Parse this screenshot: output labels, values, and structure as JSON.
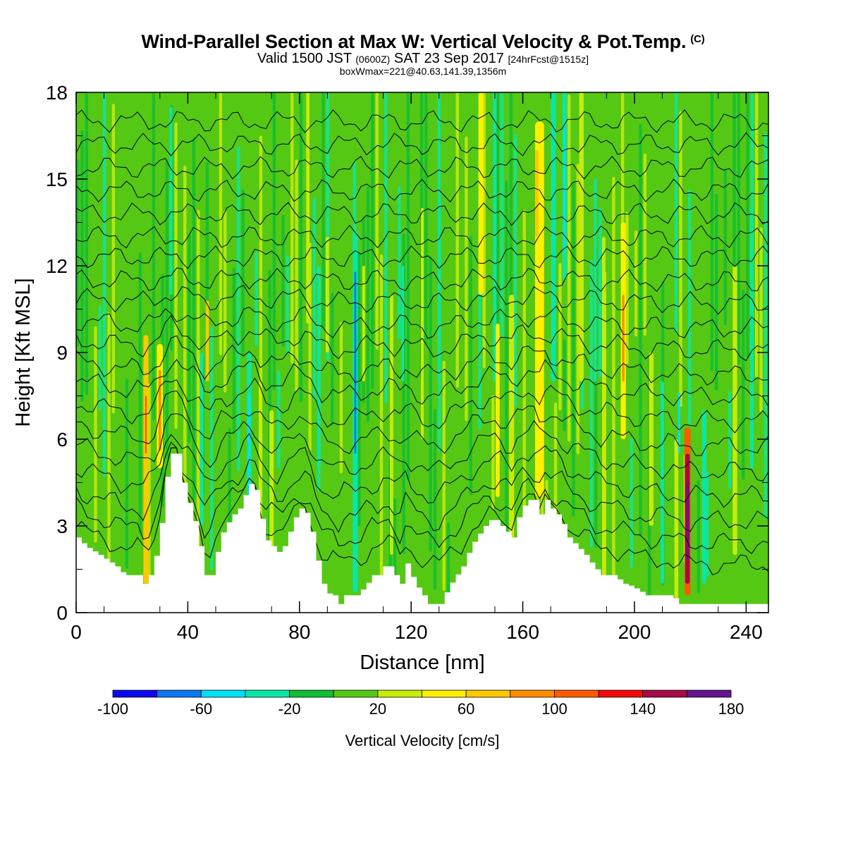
{
  "header": {
    "title": "Wind-Parallel Section at Max W: Vertical Velocity & Pot.Temp.",
    "title_mark": "(C)",
    "valid_a": "Valid 1500 JST",
    "valid_b": "(0600Z)",
    "valid_c": "SAT 23 Sep 2017",
    "valid_d": "[24hrFcst@1515z]",
    "boxinfo": "boxWmax=221@40.63,141.39,1356m"
  },
  "chart_data": {
    "type": "heatmap",
    "xlabel": "Distance [nm]",
    "ylabel": "Height [Kft MSL]",
    "xlim": [
      0,
      248
    ],
    "ylim": [
      0,
      18
    ],
    "x_ticks": [
      "0",
      "40",
      "80",
      "120",
      "160",
      "200",
      "240"
    ],
    "y_ticks": [
      "0",
      "3",
      "6",
      "9",
      "12",
      "15",
      "18"
    ],
    "colorbar": {
      "label": "Vertical Velocity [cm/s]",
      "tick_labels": [
        "-100",
        "-60",
        "-20",
        "20",
        "60",
        "100",
        "140",
        "180"
      ],
      "bounds": [
        -100,
        -80,
        -60,
        -40,
        -20,
        0,
        20,
        40,
        60,
        80,
        100,
        120,
        140,
        160,
        180
      ],
      "colors": [
        "#0a0af0",
        "#0a78f0",
        "#00e1f5",
        "#0ae6a5",
        "#0fbe32",
        "#55c814",
        "#c8eb0a",
        "#fff000",
        "#ffc800",
        "#ff8c00",
        "#ff5a00",
        "#f50a0a",
        "#a50a46",
        "#64148c"
      ]
    },
    "terrain_kft": [
      [
        0,
        2.6
      ],
      [
        3,
        2.3
      ],
      [
        8,
        2.0
      ],
      [
        14,
        1.6
      ],
      [
        17,
        1.3
      ],
      [
        22,
        1.3
      ],
      [
        24,
        1.0
      ],
      [
        26,
        1.3
      ],
      [
        29,
        2.3
      ],
      [
        31,
        3.9
      ],
      [
        33,
        5.5
      ],
      [
        36,
        5.5
      ],
      [
        37,
        5.0
      ],
      [
        39,
        4.0
      ],
      [
        41,
        3.6
      ],
      [
        44,
        2.3
      ],
      [
        46,
        1.3
      ],
      [
        47,
        1.0
      ],
      [
        49,
        1.6
      ],
      [
        51,
        2.6
      ],
      [
        55,
        3.3
      ],
      [
        58,
        3.6
      ],
      [
        61,
        4.3
      ],
      [
        63,
        4.6
      ],
      [
        65,
        3.9
      ],
      [
        67,
        2.6
      ],
      [
        70,
        2.3
      ],
      [
        73,
        2.0
      ],
      [
        75,
        2.6
      ],
      [
        77,
        3.0
      ],
      [
        79,
        3.6
      ],
      [
        81,
        3.6
      ],
      [
        83,
        3.3
      ],
      [
        85,
        2.3
      ],
      [
        87,
        1.3
      ],
      [
        89,
        0.7
      ],
      [
        92,
        0.6
      ],
      [
        94,
        0.3
      ],
      [
        96,
        0.6
      ],
      [
        98,
        0.6
      ],
      [
        100,
        0.6
      ],
      [
        103,
        0.9
      ],
      [
        106,
        1.3
      ],
      [
        108,
        1.3
      ],
      [
        110,
        1.6
      ],
      [
        112,
        1.6
      ],
      [
        114,
        1.3
      ],
      [
        116,
        1.0
      ],
      [
        118,
        1.7
      ],
      [
        121,
        1.0
      ],
      [
        124,
        0.6
      ],
      [
        126,
        0.3
      ],
      [
        130,
        0.3
      ],
      [
        133,
        0.9
      ],
      [
        138,
        1.6
      ],
      [
        141,
        2.3
      ],
      [
        143,
        2.6
      ],
      [
        146,
        3.0
      ],
      [
        149,
        3.3
      ],
      [
        152,
        3.0
      ],
      [
        156,
        2.6
      ],
      [
        158,
        3.3
      ],
      [
        161,
        3.9
      ],
      [
        164,
        3.9
      ],
      [
        166,
        3.4
      ],
      [
        168,
        3.9
      ],
      [
        170,
        3.6
      ],
      [
        173,
        3.3
      ],
      [
        176,
        2.6
      ],
      [
        179,
        2.3
      ],
      [
        182,
        2.0
      ],
      [
        185,
        1.6
      ],
      [
        188,
        1.3
      ],
      [
        192,
        1.3
      ],
      [
        196,
        1.0
      ],
      [
        199,
        0.9
      ],
      [
        204,
        0.6
      ],
      [
        209,
        0.6
      ],
      [
        213,
        0.6
      ],
      [
        216,
        0.3
      ],
      [
        248,
        0.3
      ]
    ],
    "bands": [
      {
        "x": 25,
        "w": 1.8,
        "h0": 1.0,
        "h1": 9.6,
        "v": 60
      },
      {
        "x": 25,
        "w": 0.6,
        "h0": 5.5,
        "h1": 7.5,
        "v": 100
      },
      {
        "x": 30,
        "w": 2.2,
        "h0": 5.0,
        "h1": 9.3,
        "v": 50
      },
      {
        "x": 30,
        "w": 0.9,
        "h0": 5.6,
        "h1": 8.4,
        "v": 80
      },
      {
        "x": 47,
        "w": 1.2,
        "h0": 8.0,
        "h1": 10.8,
        "v": 60
      },
      {
        "x": 45,
        "w": 1.2,
        "h0": 3.0,
        "h1": 9.0,
        "v": -40
      },
      {
        "x": 34,
        "w": 1.0,
        "h0": 11.0,
        "h1": 17.5,
        "v": -40
      },
      {
        "x": 62,
        "w": 1.6,
        "h0": 2.0,
        "h1": 9.0,
        "v": -40
      },
      {
        "x": 62,
        "w": 0.8,
        "h0": 3.8,
        "h1": 7.5,
        "v": -60
      },
      {
        "x": 66,
        "w": 1.2,
        "h0": 4.0,
        "h1": 8.0,
        "v": 30
      },
      {
        "x": 70,
        "w": 1.5,
        "h0": 2.0,
        "h1": 7.0,
        "v": 30
      },
      {
        "x": 83,
        "w": 1.2,
        "h0": 10.0,
        "h1": 18.0,
        "v": 30
      },
      {
        "x": 87,
        "w": 1.2,
        "h0": 5.0,
        "h1": 12.0,
        "v": -40
      },
      {
        "x": 90,
        "w": 1.2,
        "h0": 9.0,
        "h1": 13.0,
        "v": 30
      },
      {
        "x": 100,
        "w": 1.8,
        "h0": 0.7,
        "h1": 13.2,
        "v": -40
      },
      {
        "x": 100,
        "w": 0.7,
        "h0": 5.5,
        "h1": 11.8,
        "v": -80
      },
      {
        "x": 103,
        "w": 1.0,
        "h0": 8.0,
        "h1": 12.0,
        "v": 30
      },
      {
        "x": 113,
        "w": 1.2,
        "h0": 2.0,
        "h1": 11.0,
        "v": 30
      },
      {
        "x": 117,
        "w": 1.0,
        "h0": 8.0,
        "h1": 12.0,
        "v": -40
      },
      {
        "x": 124,
        "w": 1.0,
        "h0": 6.0,
        "h1": 14.0,
        "v": 30
      },
      {
        "x": 130,
        "w": 1.0,
        "h0": 8.0,
        "h1": 18.0,
        "v": -40
      },
      {
        "x": 145,
        "w": 1.8,
        "h0": 11.0,
        "h1": 18.0,
        "v": 50
      },
      {
        "x": 150,
        "w": 1.2,
        "h0": 8.0,
        "h1": 18.0,
        "v": -40
      },
      {
        "x": 151,
        "w": 1.4,
        "h0": 4.0,
        "h1": 10.0,
        "v": 50
      },
      {
        "x": 156,
        "w": 1.8,
        "h0": 2.0,
        "h1": 11.0,
        "v": 30
      },
      {
        "x": 166,
        "w": 3.2,
        "h0": 4.0,
        "h1": 17.0,
        "v": 50
      },
      {
        "x": 165,
        "w": 1.2,
        "h0": 13.0,
        "h1": 16.0,
        "v": 70
      },
      {
        "x": 171,
        "w": 1.8,
        "h0": 8.0,
        "h1": 18.0,
        "v": -40
      },
      {
        "x": 175,
        "w": 1.6,
        "h0": 11.5,
        "h1": 18.0,
        "v": -40
      },
      {
        "x": 175,
        "w": 0.6,
        "h0": 12.5,
        "h1": 17.0,
        "v": -60
      },
      {
        "x": 181,
        "w": 1.6,
        "h0": 8.0,
        "h1": 18.0,
        "v": 30
      },
      {
        "x": 186,
        "w": 1.0,
        "h0": 8.0,
        "h1": 15.0,
        "v": -40
      },
      {
        "x": 189,
        "w": 1.2,
        "h0": 1.0,
        "h1": 13.0,
        "v": 30
      },
      {
        "x": 196,
        "w": 1.8,
        "h0": 6.0,
        "h1": 13.5,
        "v": 50
      },
      {
        "x": 196,
        "w": 0.8,
        "h0": 8.0,
        "h1": 11.0,
        "v": 80
      },
      {
        "x": 206,
        "w": 1.6,
        "h0": 3.0,
        "h1": 9.0,
        "v": 30
      },
      {
        "x": 210,
        "w": 1.2,
        "h0": 1.0,
        "h1": 8.0,
        "v": -40
      },
      {
        "x": 215,
        "w": 1.4,
        "h0": 0.5,
        "h1": 6.0,
        "v": 30
      },
      {
        "x": 219,
        "w": 2.2,
        "h0": 0.6,
        "h1": 6.4,
        "v": 100
      },
      {
        "x": 219,
        "w": 1.6,
        "h0": 1.0,
        "h1": 5.5,
        "v": 140
      },
      {
        "x": 219,
        "w": 0.9,
        "h0": 1.8,
        "h1": 4.5,
        "v": 170
      },
      {
        "x": 216,
        "w": 0.8,
        "h0": 5.5,
        "h1": 7.6,
        "v": -60
      },
      {
        "x": 225,
        "w": 1.6,
        "h0": 1.0,
        "h1": 7.0,
        "v": -40
      },
      {
        "x": 236,
        "w": 1.6,
        "h0": 2.0,
        "h1": 12.0,
        "v": 30
      },
      {
        "x": 242,
        "w": 1.2,
        "h0": 5.0,
        "h1": 14.0,
        "v": -40
      }
    ],
    "contours_bottom_kft": [
      2.4,
      3.1,
      3.8,
      4.6,
      5.4,
      6.2,
      7.0,
      7.8,
      8.5,
      9.3,
      10.0,
      10.8,
      11.5,
      12.3,
      13.0,
      13.8,
      14.6,
      15.4,
      16.2,
      17.0
    ]
  }
}
